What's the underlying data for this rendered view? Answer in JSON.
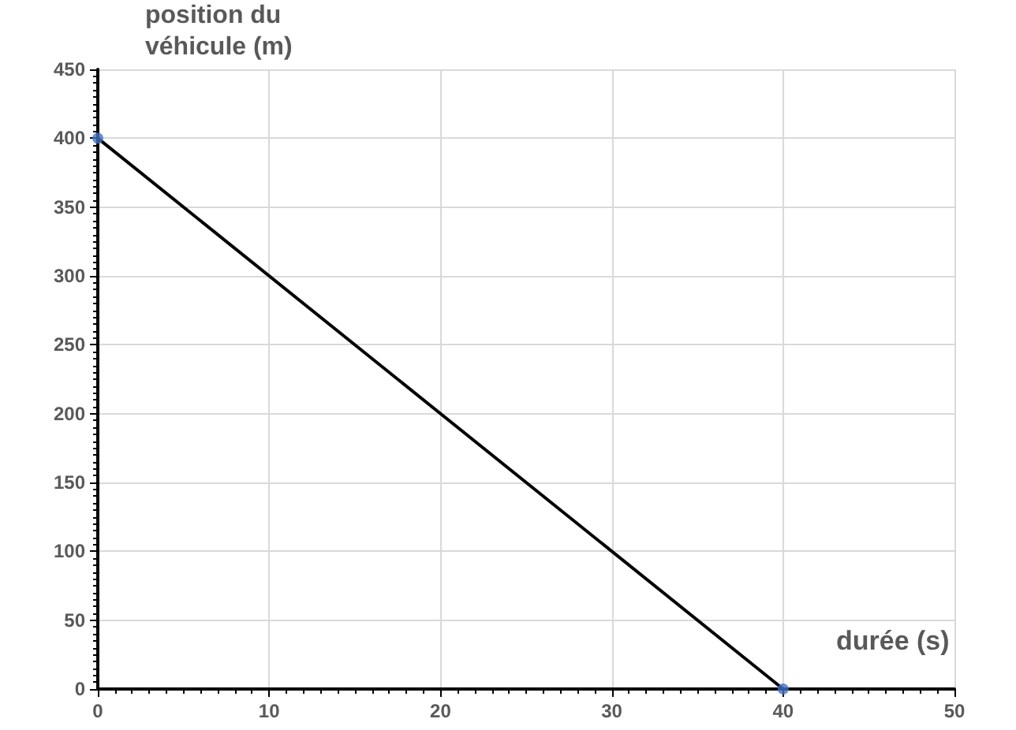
{
  "chart_data": {
    "type": "line",
    "xlabel": "durée (s)",
    "ylabel": "position du véhicule (m)",
    "x": [
      0,
      40
    ],
    "series": [
      {
        "color": "#000000",
        "values": [
          400,
          0
        ],
        "marker": "none"
      },
      {
        "type": "scatter",
        "color": "#4472c4",
        "values": [
          400,
          0
        ],
        "marker": "circle"
      }
    ],
    "xlim": [
      0,
      50
    ],
    "xticks": [
      0,
      10,
      20,
      30,
      40,
      50
    ],
    "ylim": [
      0,
      450
    ],
    "yticks": [
      0,
      50,
      100,
      150,
      200,
      250,
      300,
      350,
      400,
      450
    ],
    "grid": true
  }
}
